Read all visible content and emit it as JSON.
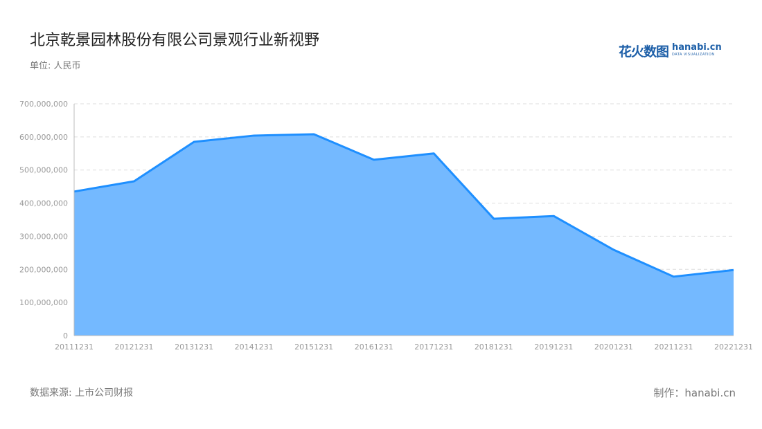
{
  "header": {
    "title": "北京乾景园林股份有限公司景观行业新视野",
    "unit": "单位: 人民币"
  },
  "logo": {
    "cn": "花火数图",
    "en": "hanabi.cn",
    "sub": "DATA VISUALIZATION"
  },
  "footer": {
    "source": "数据来源: 上市公司财报",
    "credit": "制作：hanabi.cn"
  },
  "colors": {
    "line": "#1e8fff",
    "area": "#74b9ff",
    "grid": "#dddddd"
  },
  "chart_data": {
    "type": "area",
    "categories": [
      "20111231",
      "20121231",
      "20131231",
      "20141231",
      "20151231",
      "20161231",
      "20171231",
      "20181231",
      "20191231",
      "20201231",
      "20211231",
      "20221231"
    ],
    "values": [
      435000000,
      466000000,
      585000000,
      604000000,
      608000000,
      531000000,
      550000000,
      353000000,
      361000000,
      259000000,
      178000000,
      198000000
    ],
    "ylim": [
      0,
      700000000
    ],
    "yticks": [
      0,
      100000000,
      200000000,
      300000000,
      400000000,
      500000000,
      600000000,
      700000000
    ],
    "ytick_labels": [
      "0",
      "100,000,000",
      "200,000,000",
      "300,000,000",
      "400,000,000",
      "500,000,000",
      "600,000,000",
      "700,000,000"
    ],
    "grid": true
  }
}
